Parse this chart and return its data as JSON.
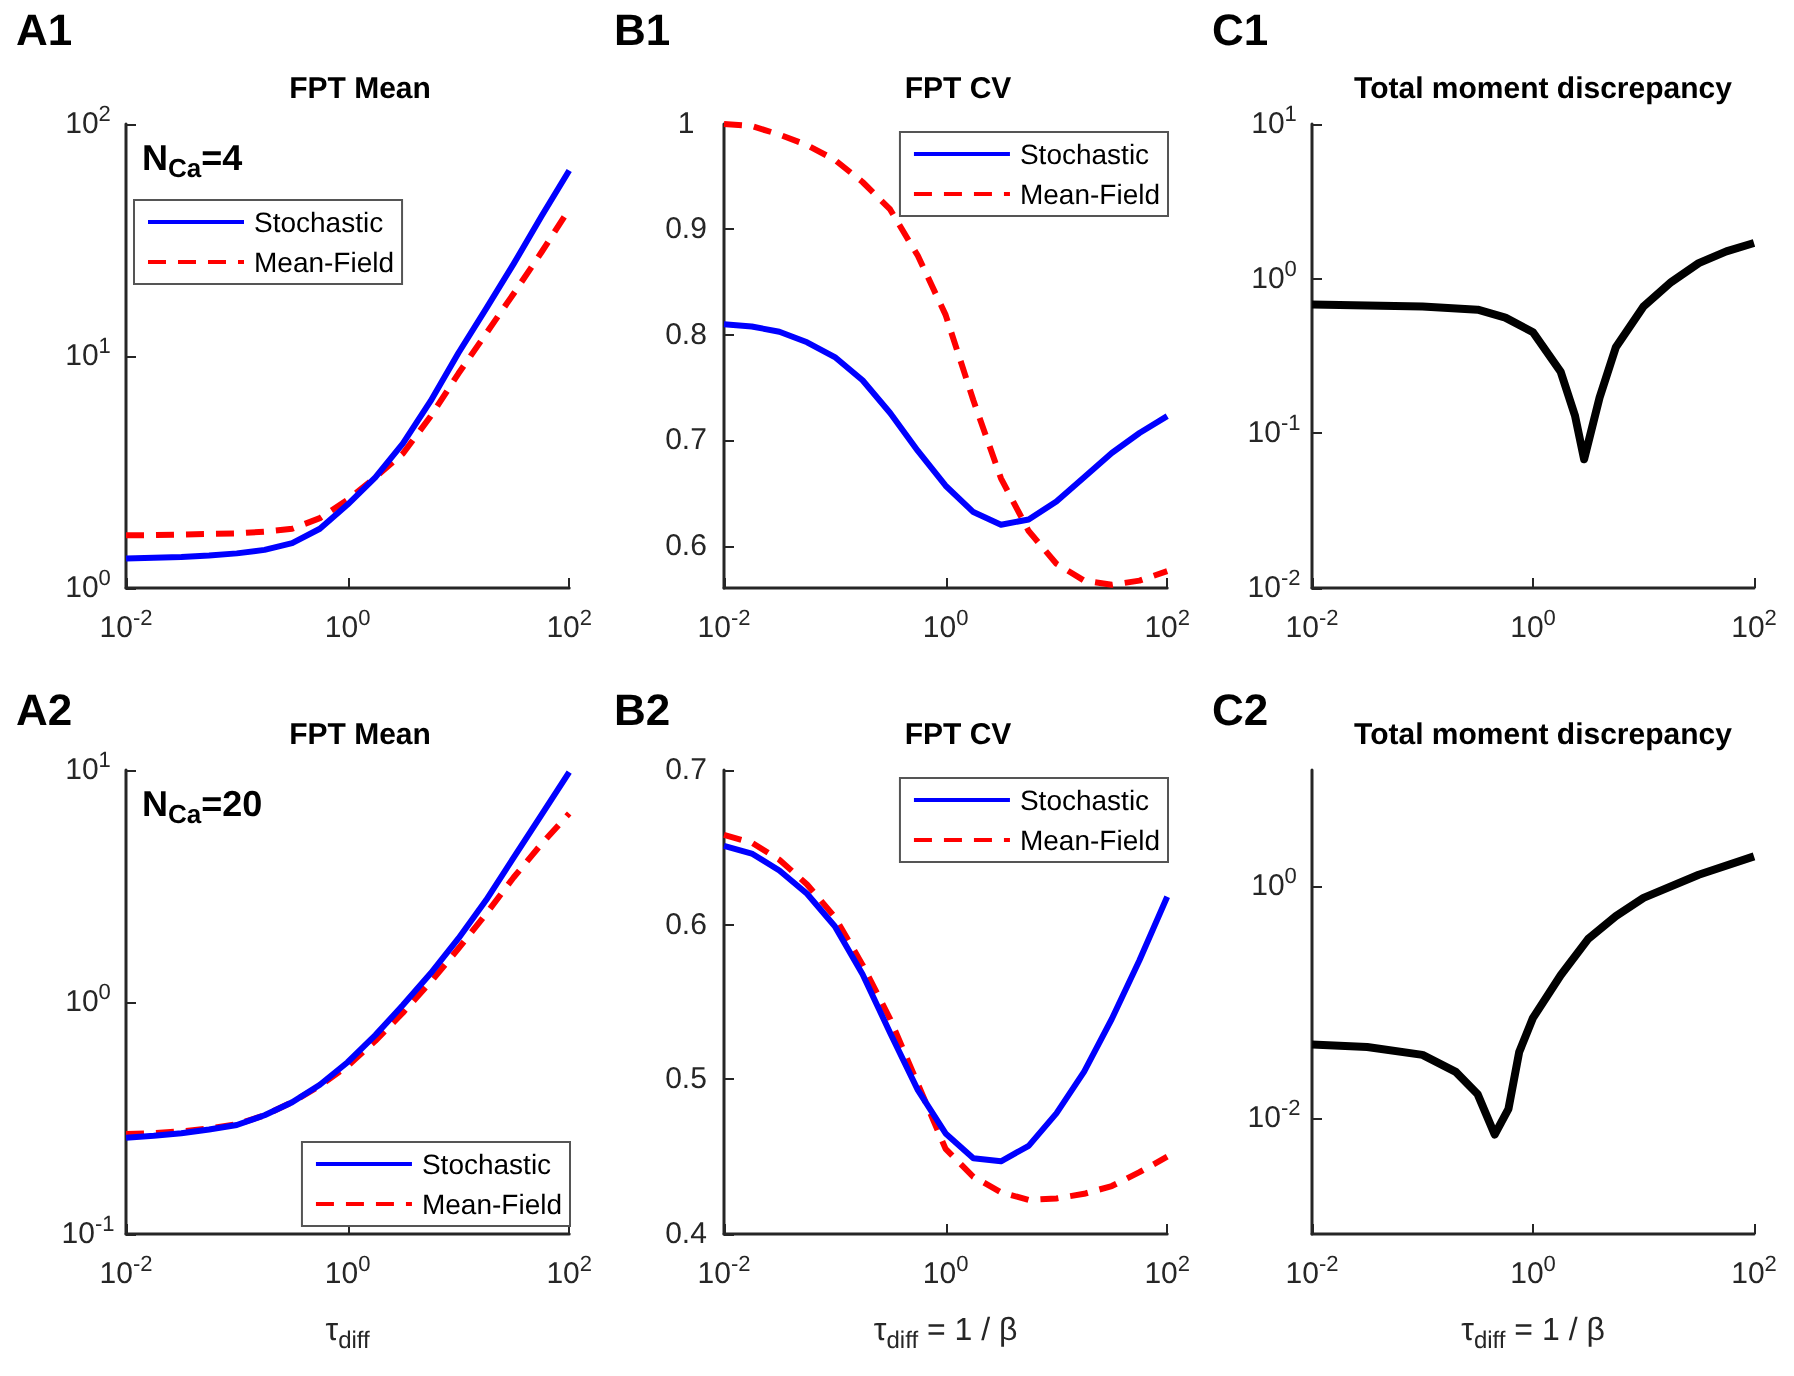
{
  "chart_data": [
    {
      "type": "line",
      "title": "FPT Mean",
      "annotations": [
        "A1",
        "N$_{Ca}$=4"
      ],
      "log": "xy",
      "legend": "top left",
      "xlim": [
        0.01,
        100
      ],
      "xticks": [
        {
          "value": 0.01,
          "label": "10$^{-2}$"
        },
        {
          "value": 1,
          "label": "10$^{0}$"
        },
        {
          "value": 100,
          "label": "10$^{2}$"
        }
      ],
      "ylim": [
        1,
        100
      ],
      "yticks": [
        {
          "value": 1,
          "label": "10$^{0}$"
        },
        {
          "value": 10,
          "label": "10$^{1}$"
        },
        {
          "value": 100,
          "label": "10$^{2}$"
        }
      ],
      "x": [
        0.01,
        0.0178,
        0.0316,
        0.0562,
        0.1,
        0.178,
        0.316,
        0.562,
        1,
        1.78,
        3.16,
        5.62,
        10,
        17.8,
        31.6,
        56.2,
        100
      ],
      "series": [
        {
          "name": "Stochastic",
          "color": "#0000ff",
          "line_style": "solid",
          "values": [
            1.34,
            1.35,
            1.36,
            1.38,
            1.41,
            1.46,
            1.56,
            1.8,
            2.29,
            3.0,
            4.2,
            6.4,
            10.3,
            16,
            25,
            40,
            63
          ]
        },
        {
          "name": "Mean-Field",
          "color": "#ff0000",
          "line_style": "dashed",
          "values": [
            1.69,
            1.69,
            1.7,
            1.71,
            1.72,
            1.75,
            1.8,
            2.0,
            2.4,
            3.0,
            3.8,
            5.5,
            8.4,
            12.5,
            18.6,
            28,
            43
          ]
        }
      ]
    },
    {
      "type": "line",
      "title": "FPT CV",
      "annotations": [
        "B1"
      ],
      "log": "x",
      "legend": "top right",
      "xlim": [
        0.01,
        100
      ],
      "xticks": [
        {
          "value": 0.01,
          "label": "10$^{-2}$"
        },
        {
          "value": 1,
          "label": "10$^{0}$"
        },
        {
          "value": 100,
          "label": "10$^{2}$"
        }
      ],
      "ylim": [
        0.56,
        1
      ],
      "yticks": [
        0.6,
        0.7,
        0.8,
        0.9,
        1
      ],
      "x": [
        0.01,
        0.0178,
        0.0316,
        0.0562,
        0.1,
        0.178,
        0.316,
        0.562,
        1,
        1.78,
        3.16,
        5.62,
        10,
        17.8,
        31.6,
        56.2,
        100
      ],
      "series": [
        {
          "name": "Stochastic",
          "color": "#0000ff",
          "line_style": "solid",
          "values": [
            0.81,
            0.808,
            0.803,
            0.793,
            0.779,
            0.757,
            0.726,
            0.69,
            0.657,
            0.632,
            0.62,
            0.625,
            0.642,
            0.665,
            0.688,
            0.707,
            0.723
          ]
        },
        {
          "name": "Mean-Field",
          "color": "#ff0000",
          "line_style": "dashed",
          "values": [
            1.0,
            0.998,
            0.99,
            0.98,
            0.966,
            0.945,
            0.919,
            0.875,
            0.819,
            0.738,
            0.664,
            0.614,
            0.583,
            0.567,
            0.563,
            0.567,
            0.576
          ]
        }
      ]
    },
    {
      "type": "line",
      "title": "Total moment discrepancy",
      "annotations": [
        "C1"
      ],
      "log": "xy",
      "legend": false,
      "xlim": [
        0.01,
        100
      ],
      "xticks": [
        {
          "value": 0.01,
          "label": "10$^{-2}$"
        },
        {
          "value": 1,
          "label": "10$^{0}$"
        },
        {
          "value": 100,
          "label": "10$^{2}$"
        }
      ],
      "ylim": [
        0.01,
        10
      ],
      "yticks": [
        {
          "value": 0.01,
          "label": "10$^{-2}$"
        },
        {
          "value": 0.1,
          "label": "10$^{-1}$"
        },
        {
          "value": 1,
          "label": "10$^{0}$"
        },
        {
          "value": 10,
          "label": "10$^{1}$"
        }
      ],
      "series": [
        {
          "color": "#000000",
          "line_style": "solid",
          "x": [
            0.01,
            0.0316,
            0.1,
            0.316,
            0.562,
            1,
            1.78,
            2.4,
            2.9,
            4,
            5.62,
            10,
            17.8,
            31.6,
            56.2,
            100
          ],
          "values": [
            0.68,
            0.67,
            0.66,
            0.63,
            0.56,
            0.45,
            0.25,
            0.13,
            0.068,
            0.17,
            0.36,
            0.66,
            0.95,
            1.26,
            1.5,
            1.7
          ]
        }
      ]
    },
    {
      "type": "line",
      "title": "FPT Mean",
      "xlabel": "τ$_{diff}$",
      "annotations": [
        "A2",
        "N$_{Ca}$=20"
      ],
      "log": "xy",
      "legend": "bottom right",
      "xlim": [
        0.01,
        100
      ],
      "xticks": [
        {
          "value": 0.01,
          "label": "10$^{-2}$"
        },
        {
          "value": 1,
          "label": "10$^{0}$"
        },
        {
          "value": 100,
          "label": "10$^{2}$"
        }
      ],
      "ylim": [
        0.1,
        10
      ],
      "yticks": [
        {
          "value": 0.1,
          "label": "10$^{-1}$"
        },
        {
          "value": 1,
          "label": "10$^{0}$"
        },
        {
          "value": 10,
          "label": "10$^{1}$"
        }
      ],
      "x": [
        0.01,
        0.0178,
        0.0316,
        0.0562,
        0.1,
        0.178,
        0.316,
        0.562,
        1,
        1.78,
        3.16,
        5.62,
        10,
        17.8,
        31.6,
        56.2,
        100
      ],
      "series": [
        {
          "name": "Stochastic",
          "color": "#0000ff",
          "line_style": "solid",
          "values": [
            0.26,
            0.265,
            0.272,
            0.282,
            0.295,
            0.325,
            0.37,
            0.44,
            0.55,
            0.72,
            0.97,
            1.33,
            1.88,
            2.75,
            4.2,
            6.4,
            9.8
          ]
        },
        {
          "name": "Mean-Field",
          "color": "#ff0000",
          "line_style": "dashed",
          "values": [
            0.27,
            0.272,
            0.277,
            0.285,
            0.297,
            0.325,
            0.37,
            0.435,
            0.53,
            0.68,
            0.9,
            1.22,
            1.7,
            2.4,
            3.45,
            4.8,
            6.5
          ]
        }
      ]
    },
    {
      "type": "line",
      "title": "FPT CV",
      "xlabel": "τ$_{diff}$ = 1 / β",
      "annotations": [
        "B2"
      ],
      "log": "x",
      "legend": "top right",
      "xlim": [
        0.01,
        100
      ],
      "xticks": [
        {
          "value": 0.01,
          "label": "10$^{-2}$"
        },
        {
          "value": 1,
          "label": "10$^{0}$"
        },
        {
          "value": 100,
          "label": "10$^{2}$"
        }
      ],
      "ylim": [
        0.4,
        0.7
      ],
      "yticks": [
        0.4,
        0.5,
        0.6,
        0.7
      ],
      "x": [
        0.01,
        0.0178,
        0.0316,
        0.0562,
        0.1,
        0.178,
        0.316,
        0.562,
        1,
        1.78,
        3.16,
        5.62,
        10,
        17.8,
        31.6,
        56.2,
        100
      ],
      "series": [
        {
          "name": "Stochastic",
          "color": "#0000ff",
          "line_style": "solid",
          "values": [
            0.651,
            0.646,
            0.635,
            0.62,
            0.599,
            0.568,
            0.53,
            0.493,
            0.465,
            0.449,
            0.447,
            0.457,
            0.478,
            0.505,
            0.539,
            0.577,
            0.618
          ]
        },
        {
          "name": "Mean-Field",
          "color": "#ff0000",
          "line_style": "dashed",
          "values": [
            0.658,
            0.653,
            0.642,
            0.626,
            0.605,
            0.574,
            0.539,
            0.497,
            0.455,
            0.437,
            0.427,
            0.422,
            0.423,
            0.426,
            0.431,
            0.44,
            0.45
          ]
        }
      ]
    },
    {
      "type": "line",
      "title": "Total moment discrepancy",
      "xlabel": "τ$_{diff}$ = 1 / β",
      "annotations": [
        "C2"
      ],
      "log": "xy",
      "legend": false,
      "xlim": [
        0.01,
        100
      ],
      "xticks": [
        {
          "value": 0.01,
          "label": "10$^{-2}$"
        },
        {
          "value": 1,
          "label": "10$^{0}$"
        },
        {
          "value": 100,
          "label": "10$^{2}$"
        }
      ],
      "ylim": [
        0.001,
        10
      ],
      "yticks": [
        {
          "value": 0.01,
          "label": "10$^{-2}$"
        },
        {
          "value": 1,
          "label": "10$^{0}$"
        }
      ],
      "series": [
        {
          "color": "#000000",
          "line_style": "solid",
          "x": [
            0.01,
            0.0316,
            0.1,
            0.2,
            0.316,
            0.45,
            0.6,
            0.75,
            1,
            1.78,
            3.16,
            5.62,
            10,
            31.6,
            100
          ],
          "values": [
            0.043,
            0.041,
            0.035,
            0.025,
            0.016,
            0.0072,
            0.012,
            0.037,
            0.073,
            0.17,
            0.35,
            0.55,
            0.79,
            1.25,
            1.8
          ]
        }
      ]
    }
  ]
}
